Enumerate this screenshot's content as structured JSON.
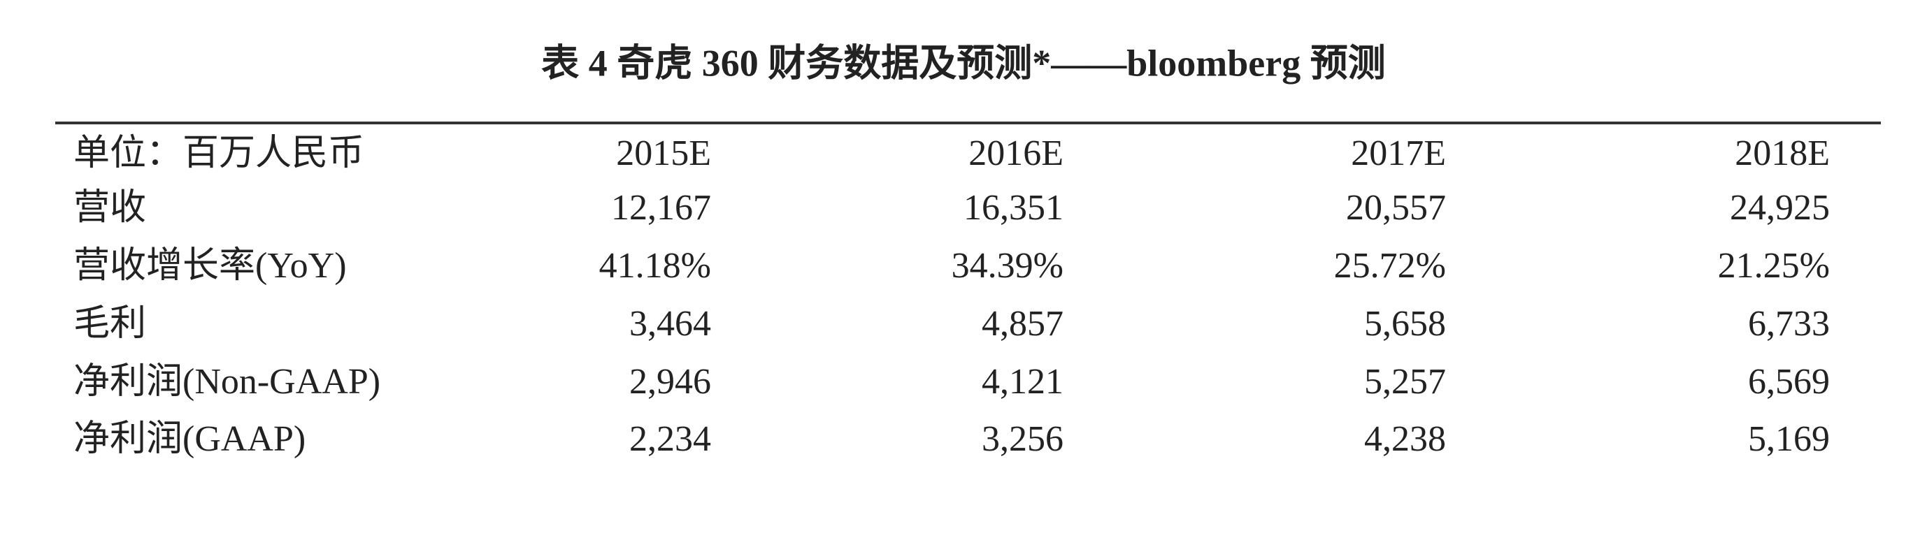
{
  "header": {
    "title": "表 4 奇虎 360 财务数据及预测*——bloomberg 预测"
  },
  "table": {
    "columns": [
      "单位：百万人民币",
      "2015E",
      "2016E",
      "2017E",
      "2018E"
    ],
    "rows": [
      [
        "营收",
        "12,167",
        "16,351",
        "20,557",
        "24,925"
      ],
      [
        "营收增长率(YoY)",
        "41.18%",
        "34.39%",
        "25.72%",
        "21.25%"
      ],
      [
        "毛利",
        "3,464",
        "4,857",
        "5,658",
        "6,733"
      ],
      [
        "净利润(Non-GAAP)",
        "2,946",
        "4,121",
        "5,257",
        "6,569"
      ],
      [
        "净利润(GAAP)",
        "2,234",
        "3,256",
        "4,238",
        "5,169"
      ]
    ]
  }
}
